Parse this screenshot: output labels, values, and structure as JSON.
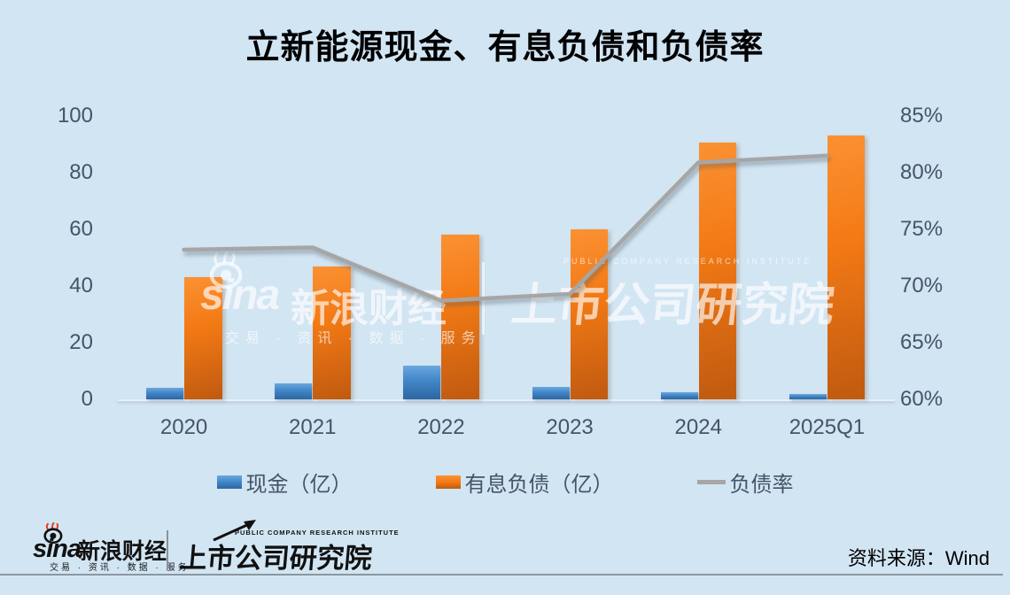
{
  "title": "立新能源现金、有息负债和负债率",
  "chart_data": {
    "type": "bar",
    "title": "立新能源现金、有息负债和负债率",
    "categories": [
      "2020",
      "2021",
      "2022",
      "2023",
      "2024",
      "2025Q1"
    ],
    "series": [
      {
        "key": "cash",
        "name": "现金（亿）",
        "type": "bar",
        "axis": "left",
        "values": [
          4,
          5.7,
          12,
          4.3,
          2.6,
          1.9
        ]
      },
      {
        "key": "debt",
        "name": "有息负债（亿）",
        "type": "bar",
        "axis": "left",
        "values": [
          43,
          47,
          58,
          60,
          90.5,
          93
        ]
      },
      {
        "key": "ratio",
        "name": "负债率",
        "type": "line",
        "axis": "right",
        "unit": "%",
        "values": [
          73.2,
          73.4,
          68.7,
          69.3,
          80.9,
          81.5
        ]
      }
    ],
    "left_axis": {
      "min": 0,
      "max": 100,
      "ticks": [
        0,
        20,
        40,
        60,
        80,
        100
      ]
    },
    "right_axis": {
      "min": 60,
      "max": 85,
      "ticks": [
        60,
        65,
        70,
        75,
        80,
        85
      ],
      "tick_labels": [
        "60%",
        "65%",
        "70%",
        "75%",
        "80%",
        "85%"
      ]
    },
    "grid": false,
    "legend_position": "bottom"
  },
  "watermark": {
    "brand": "sina",
    "brand_cn": "新浪财经",
    "tagline": "交易 · 资讯 · 数据 · 服务",
    "institute_en": "PUBLIC COMPANY RESEARCH INSTITUTE",
    "institute": "上市公司研究院"
  },
  "footer": {
    "brand": "sina",
    "brand_cn": "新浪财经",
    "tagline": "交易 · 资讯 · 数据 · 服务",
    "institute_en": "PUBLIC COMPANY RESEARCH INSTITUTE",
    "institute": "上市公司研究院",
    "source": "资料来源：Wind"
  },
  "colors": {
    "background": "#d2e5f3",
    "bar_cash_top": "#6aa7de",
    "bar_cash_bottom": "#2d66a1",
    "bar_debt_top": "#fb9133",
    "bar_debt_bottom": "#c05a10",
    "line": "#a6a6a6",
    "axis_text": "#44546a",
    "title_text": "#000000"
  }
}
